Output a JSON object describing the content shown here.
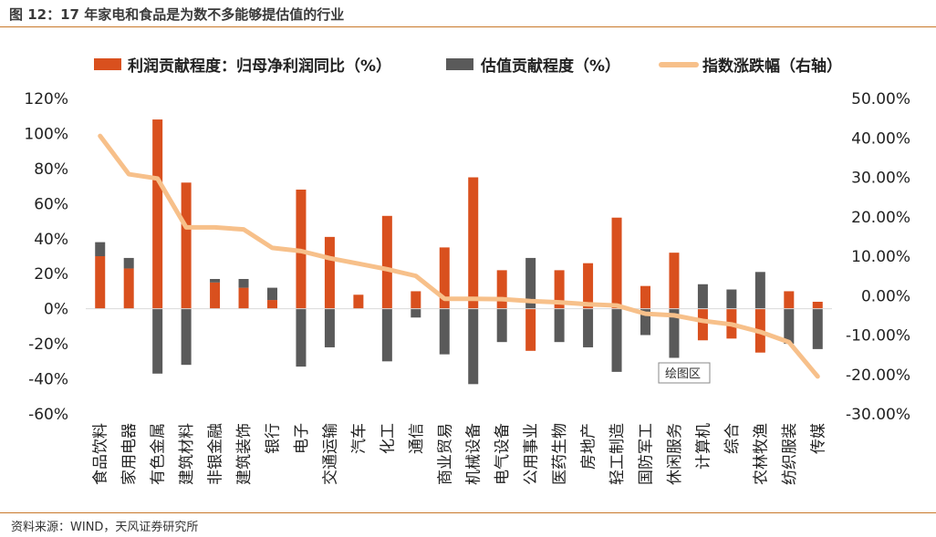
{
  "header": {
    "title": "图 12：17 年家电和食品是为数不多能够提估值的行业"
  },
  "footer": {
    "source": "资料来源：WIND，天风证券研究所"
  },
  "colors": {
    "profit": "#d9501e",
    "valuation": "#5a5a5a",
    "index": "#f7c08a",
    "rule": "#c8782a"
  },
  "chart_data": {
    "type": "bar",
    "legend": {
      "profit": "利润贡献程度：归母净利润同比（%）",
      "valuation": "估值贡献程度（%）",
      "index": "指数涨跌幅（右轴）"
    },
    "annotation": "绘图区",
    "categories": [
      "食品饮料",
      "家用电器",
      "有色金属",
      "建筑材料",
      "非银金融",
      "建筑装饰",
      "银行",
      "电子",
      "交通运输",
      "汽车",
      "化工",
      "通信",
      "商业贸易",
      "机械设备",
      "电气设备",
      "公用事业",
      "医药生物",
      "房地产",
      "轻工制造",
      "国防军工",
      "休闲服务",
      "计算机",
      "综合",
      "农林牧渔",
      "纺织服装",
      "传媒"
    ],
    "series": [
      {
        "name": "利润贡献程度：归母净利润同比（%）",
        "axis": "left",
        "values": [
          30,
          23,
          108,
          72,
          15,
          12,
          5,
          68,
          41,
          8,
          53,
          10,
          35,
          75,
          22,
          -24,
          22,
          26,
          52,
          13,
          32,
          -18,
          -17,
          -25,
          10,
          4
        ]
      },
      {
        "name": "估值贡献程度（%）",
        "axis": "left",
        "values": [
          8,
          6,
          -37,
          -32,
          2,
          5,
          7,
          -33,
          -22,
          0,
          -30,
          -5,
          -26,
          -43,
          -19,
          29,
          -19,
          -22,
          -36,
          -15,
          -28,
          14,
          11,
          21,
          -20,
          -23
        ]
      },
      {
        "name": "指数涨跌幅（右轴）",
        "axis": "right",
        "type": "line",
        "values": [
          40.5,
          30.8,
          29.7,
          17.3,
          17.3,
          16.8,
          12.1,
          11.3,
          9.5,
          8.1,
          6.7,
          5.0,
          -0.8,
          -0.8,
          -0.9,
          -1.4,
          -1.7,
          -2.2,
          -2.5,
          -4.6,
          -5.0,
          -6.4,
          -7.3,
          -9.2,
          -11.8,
          -20.5
        ]
      }
    ],
    "y_left": {
      "ylim": [
        -60,
        120
      ],
      "ticks": [
        "120%",
        "100%",
        "80%",
        "60%",
        "40%",
        "20%",
        "0%",
        "-20%",
        "-40%",
        "-60%"
      ]
    },
    "y_right": {
      "ylim": [
        -30,
        50
      ],
      "ticks": [
        "50.00%",
        "40.00%",
        "30.00%",
        "20.00%",
        "10.00%",
        "0.00%",
        "-10.00%",
        "-20.00%",
        "-30.00%"
      ]
    },
    "legend_position": "top",
    "grid": false
  }
}
